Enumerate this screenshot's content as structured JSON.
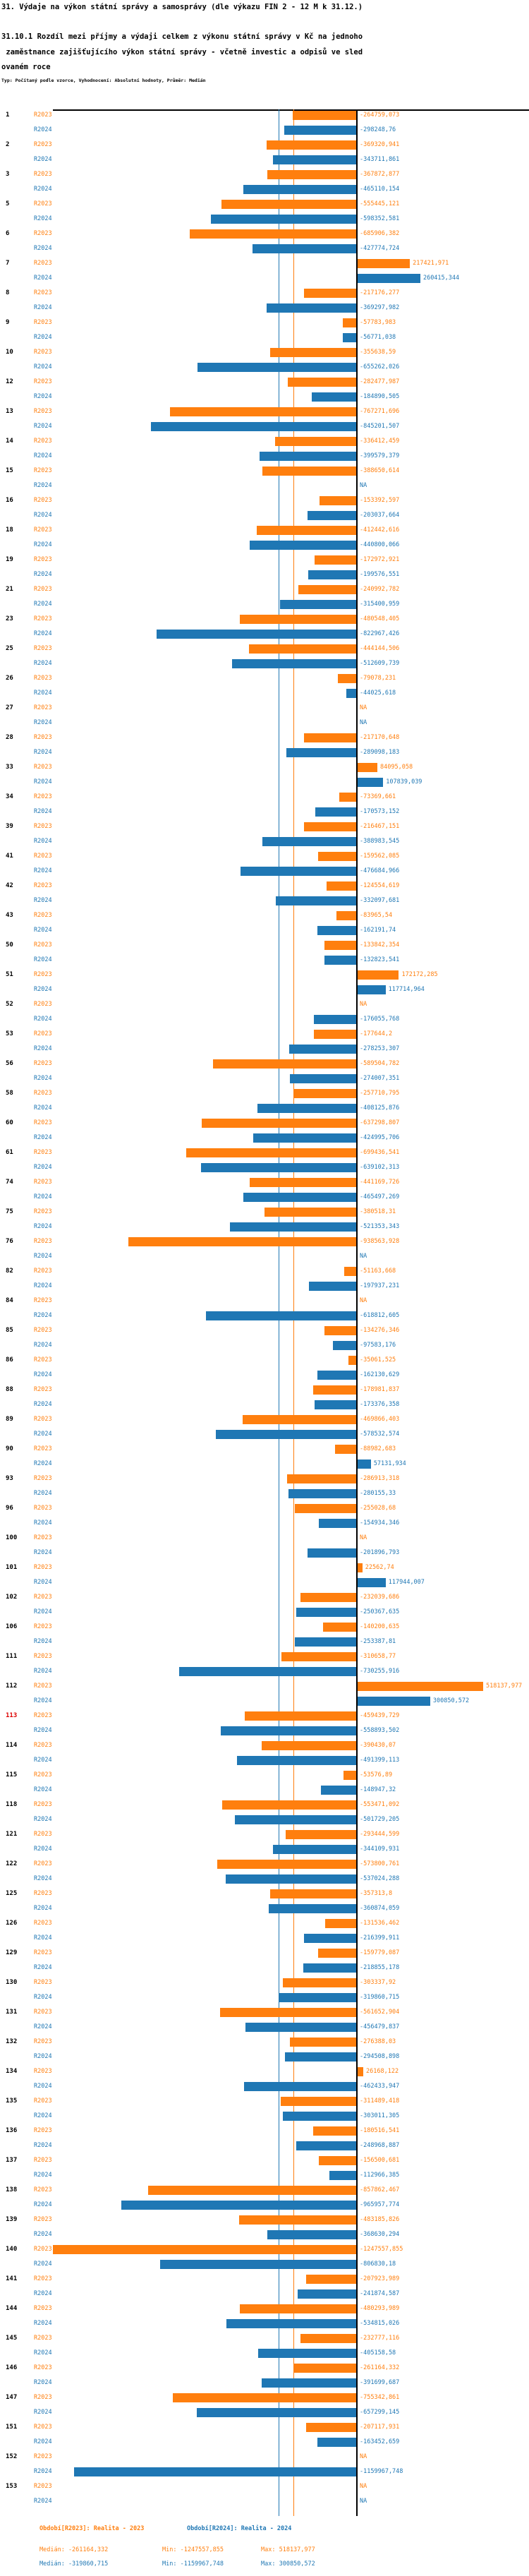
{
  "header": {
    "title": "31. Výdaje na výkon státní správy a samosprávy (dle výkazu FIN 2 - 12 M k 31.12.)",
    "subtitle_line1": "31.10.1 Rozdíl mezi příjmy a výdaji celkem z výkonu státní správy v Kč na jednoho",
    "subtitle_line2": " zaměstnance zajišťujícího výkon státní správy - včetně investic a odpisů ve sled",
    "subtitle_line3": "ovaném roce",
    "meta": "Typ: Počítaný podle vzorce, Vyhodnocení: Absolutní hodnoty, Průměr: Medián"
  },
  "chart_data": {
    "type": "bar",
    "orientation": "horizontal",
    "title": "31.10.1 Rozdíl mezi příjmy a výdaji celkem z výkonu státní správy v Kč na jednoho zaměstnance zajišťujícího výkon státní správy - včetně investic a odpisů ve sledovaném roce",
    "na_label": "NA",
    "series": [
      {
        "name": "R2023",
        "color": "#ff7f0e",
        "median": -261164.332,
        "min": -1247557.855,
        "max": 518137.977
      },
      {
        "name": "R2024",
        "color": "#1f77b4",
        "median": -319860.715,
        "min": -1159967.748,
        "max": 300850.572
      }
    ],
    "axis": {
      "zero": 0,
      "min": -1247557.855,
      "max": 518137.977,
      "zero_line_color": "#000000"
    },
    "median_lines": [
      {
        "series": "R2023",
        "value": -261164.332,
        "color": "#ff7f0e"
      },
      {
        "series": "R2024",
        "value": -319860.715,
        "color": "#1f77b4"
      }
    ],
    "highlight_row_ids": [
      "113"
    ],
    "highlight_color": "#dd0000",
    "rows_columns": [
      "id",
      "R2023",
      "R2024"
    ],
    "rows": [
      [
        "1",
        "-264759,073",
        "-298248,76"
      ],
      [
        "2",
        "-369320,941",
        "-343711,861"
      ],
      [
        "3",
        "-367872,877",
        "-465110,154"
      ],
      [
        "5",
        "-555445,121",
        "-598352,581"
      ],
      [
        "6",
        "-685906,382",
        "-427774,724"
      ],
      [
        "7",
        "217421,971",
        "260415,344"
      ],
      [
        "8",
        "-217176,277",
        "-369297,982"
      ],
      [
        "9",
        "-57783,983",
        "-56771,038"
      ],
      [
        "10",
        "-355638,59",
        "-655262,026"
      ],
      [
        "12",
        "-282477,987",
        "-184890,505"
      ],
      [
        "13",
        "-767271,696",
        "-845201,507"
      ],
      [
        "14",
        "-336412,459",
        "-399579,379"
      ],
      [
        "15",
        "-388650,614",
        null
      ],
      [
        "16",
        "-153392,597",
        "-203037,664"
      ],
      [
        "18",
        "-412442,616",
        "-440800,066"
      ],
      [
        "19",
        "-172972,921",
        "-199576,551"
      ],
      [
        "21",
        "-240992,782",
        "-315400,959"
      ],
      [
        "23",
        "-480548,405",
        "-822967,426"
      ],
      [
        "25",
        "-444144,506",
        "-512609,739"
      ],
      [
        "26",
        "-79078,231",
        "-44025,618"
      ],
      [
        "27",
        null,
        null
      ],
      [
        "28",
        "-217170,648",
        "-289098,183"
      ],
      [
        "33",
        "84095,058",
        "107839,039"
      ],
      [
        "34",
        "-73369,661",
        "-170573,152"
      ],
      [
        "39",
        "-216467,151",
        "-388983,545"
      ],
      [
        "41",
        "-159562,085",
        "-476684,966"
      ],
      [
        "42",
        "-124554,619",
        "-332097,681"
      ],
      [
        "43",
        "-83965,54",
        "-162191,74"
      ],
      [
        "50",
        "-133842,354",
        "-132823,541"
      ],
      [
        "51",
        "172172,285",
        "117714,964"
      ],
      [
        "52",
        null,
        "-176055,768"
      ],
      [
        "53",
        "-177644,2",
        "-278253,307"
      ],
      [
        "56",
        "-589504,782",
        "-274007,351"
      ],
      [
        "58",
        "-257710,795",
        "-408125,876"
      ],
      [
        "60",
        "-637298,807",
        "-424995,706"
      ],
      [
        "61",
        "-699436,541",
        "-639102,313"
      ],
      [
        "74",
        "-441169,726",
        "-465497,269"
      ],
      [
        "75",
        "-380518,31",
        "-521353,343"
      ],
      [
        "76",
        "-938563,928",
        null
      ],
      [
        "82",
        "-51163,668",
        "-197937,231"
      ],
      [
        "84",
        null,
        "-618812,605"
      ],
      [
        "85",
        "-134276,346",
        "-97583,176"
      ],
      [
        "86",
        "-35061,525",
        "-162130,629"
      ],
      [
        "88",
        "-178981,837",
        "-173376,358"
      ],
      [
        "89",
        "-469866,403",
        "-578532,574"
      ],
      [
        "90",
        "-88982,683",
        "57131,934"
      ],
      [
        "93",
        "-286913,318",
        "-280155,33"
      ],
      [
        "96",
        "-255028,68",
        "-154934,346"
      ],
      [
        "100",
        null,
        "-201896,793"
      ],
      [
        "101",
        "22562,74",
        "117944,007"
      ],
      [
        "102",
        "-232039,686",
        "-250367,635"
      ],
      [
        "106",
        "-140200,635",
        "-253387,81"
      ],
      [
        "111",
        "-310658,77",
        "-730255,916"
      ],
      [
        "112",
        "518137,977",
        "300850,572"
      ],
      [
        "113",
        "-459439,729",
        "-558893,502"
      ],
      [
        "114",
        "-390430,07",
        "-491399,113"
      ],
      [
        "115",
        "-53576,89",
        "-148947,32"
      ],
      [
        "118",
        "-553471,092",
        "-501729,205"
      ],
      [
        "121",
        "-293444,599",
        "-344109,931"
      ],
      [
        "122",
        "-573800,761",
        "-537024,288"
      ],
      [
        "125",
        "-357313,8",
        "-360874,059"
      ],
      [
        "126",
        "-131536,462",
        "-216399,911"
      ],
      [
        "129",
        "-159779,087",
        "-218855,178"
      ],
      [
        "130",
        "-303337,92",
        "-319860,715"
      ],
      [
        "131",
        "-561652,904",
        "-456479,837"
      ],
      [
        "132",
        "-276388,03",
        "-294508,898"
      ],
      [
        "134",
        "26168,122",
        "-462433,947"
      ],
      [
        "135",
        "-311489,418",
        "-303011,305"
      ],
      [
        "136",
        "-180516,541",
        "-248968,887"
      ],
      [
        "137",
        "-156500,681",
        "-112966,385"
      ],
      [
        "138",
        "-857862,467",
        "-965957,774"
      ],
      [
        "139",
        "-483185,826",
        "-368630,294"
      ],
      [
        "140",
        "-1247557,855",
        "-806830,18"
      ],
      [
        "141",
        "-207923,989",
        "-241874,587"
      ],
      [
        "144",
        "-480293,989",
        "-534815,026"
      ],
      [
        "145",
        "-232777,116",
        "-405158,58"
      ],
      [
        "146",
        "-261164,332",
        "-391699,687"
      ],
      [
        "147",
        "-755342,861",
        "-657299,145"
      ],
      [
        "151",
        "-207117,931",
        "-163452,659"
      ],
      [
        "152",
        null,
        "-1159967,748"
      ],
      [
        "153",
        null,
        null
      ]
    ]
  },
  "footer": {
    "legend_2023": "Období[R2023]: Realita - 2023",
    "legend_2024": "Období[R2024]: Realita - 2024",
    "stats_2023": {
      "median": "Medián: -261164,332",
      "min": "Min: -1247557,855",
      "max": "Max: 518137,977"
    },
    "stats_2024": {
      "median": "Medián: -319860,715",
      "min": "Min: -1159967,748",
      "max": "Max: 300850,572"
    }
  }
}
